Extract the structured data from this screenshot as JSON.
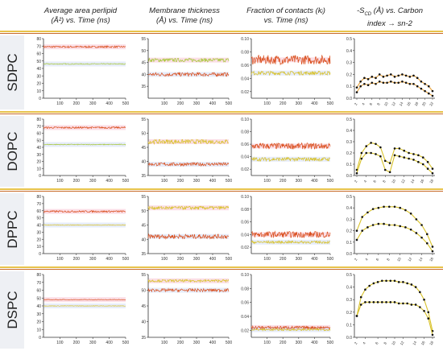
{
  "headers": {
    "col1": {
      "line1": "Average area perlipid",
      "line2": "(Å²) vs. Time (ns)"
    },
    "col2": {
      "line1": "Membrane thickness",
      "line2": "(Å) vs. Time (ns)"
    },
    "col3": {
      "line1": "Fraction of contacts (kᵢ)",
      "line2": "vs. Time (ns)"
    },
    "col4": {
      "line1": "-S",
      "sub": "CD",
      "line1b": " (Å) vs. Carbon",
      "line2": "index → sn-2"
    }
  },
  "rows": [
    "SDPC",
    "DOPC",
    "DPPC",
    "DSPC"
  ],
  "colors": {
    "red": "#d94d1a",
    "orange": "#e8a23a",
    "yellow": "#d8c22a",
    "green": "#a8c83a",
    "pink": "#f3a0b8",
    "blue": "#b8c8f0",
    "band": "#e8c34a",
    "bandDark": "#c86a28"
  },
  "chart_data": [
    {
      "type": "line",
      "row": "SDPC",
      "panel": "area",
      "xlim": [
        0,
        500
      ],
      "ylim": [
        0,
        80
      ],
      "xticks": [
        "100",
        "200",
        "300",
        "400",
        "500"
      ],
      "yticks": [
        "0",
        "10",
        "20",
        "30",
        "40",
        "50",
        "60",
        "70",
        "80"
      ],
      "series": [
        {
          "mean": 69,
          "noise": 1.2,
          "color": "red"
        },
        {
          "mean": 46,
          "noise": 0.6,
          "color": "green"
        }
      ]
    },
    {
      "type": "line",
      "row": "SDPC",
      "panel": "thickness",
      "xlim": [
        0,
        500
      ],
      "ylim": [
        30,
        55
      ],
      "xticks": [
        "100",
        "200",
        "300",
        "400",
        "500"
      ],
      "yticks": [
        "35",
        "40",
        "45",
        "50",
        "55"
      ],
      "series": [
        {
          "mean": 46,
          "noise": 0.8,
          "color": "green"
        },
        {
          "mean": 40,
          "noise": 0.8,
          "color": "red"
        }
      ]
    },
    {
      "type": "line",
      "row": "SDPC",
      "panel": "contacts",
      "xlim": [
        0,
        500
      ],
      "ylim": [
        0.01,
        0.1
      ],
      "xticks": [
        "100",
        "200",
        "300",
        "400",
        "500"
      ],
      "yticks": [
        "0.02",
        "0.04",
        "0.06",
        "0.08",
        "0.10"
      ],
      "series": [
        {
          "mean": 0.068,
          "noise": 0.007,
          "color": "red"
        },
        {
          "mean": 0.048,
          "noise": 0.003,
          "color": "yellow"
        }
      ]
    },
    {
      "type": "line",
      "row": "SDPC",
      "panel": "scd",
      "ylim": [
        0,
        0.5
      ],
      "yticks": [
        "0.0",
        "0.1",
        "0.2",
        "0.3",
        "0.4",
        "0.5"
      ],
      "xticks": [
        "2",
        "4",
        "6",
        "8",
        "10",
        "12",
        "14",
        "16",
        "18",
        "20",
        "22"
      ],
      "series": [
        {
          "values": [
            0.09,
            0.14,
            0.17,
            0.16,
            0.18,
            0.17,
            0.2,
            0.18,
            0.19,
            0.2,
            0.18,
            0.19,
            0.2,
            0.19,
            0.18,
            0.19,
            0.17,
            0.14,
            0.12,
            0.1,
            0.06
          ],
          "color": "orange"
        },
        {
          "values": [
            0.05,
            0.1,
            0.12,
            0.11,
            0.13,
            0.12,
            0.14,
            0.13,
            0.13,
            0.14,
            0.13,
            0.13,
            0.14,
            0.13,
            0.12,
            0.12,
            0.1,
            0.08,
            0.06,
            0.04,
            0.02
          ],
          "color": "orange"
        }
      ]
    },
    {
      "type": "line",
      "row": "DOPC",
      "panel": "area",
      "xlim": [
        0,
        500
      ],
      "ylim": [
        0,
        80
      ],
      "xticks": [
        "100",
        "200",
        "300",
        "400",
        "500"
      ],
      "yticks": [
        "0",
        "10",
        "20",
        "30",
        "40",
        "50",
        "60",
        "70",
        "80"
      ],
      "series": [
        {
          "mean": 68,
          "noise": 1.2,
          "color": "red"
        },
        {
          "mean": 44,
          "noise": 0.6,
          "color": "green"
        }
      ]
    },
    {
      "type": "line",
      "row": "DOPC",
      "panel": "thickness",
      "xlim": [
        0,
        500
      ],
      "ylim": [
        35,
        55
      ],
      "xticks": [
        "100",
        "200",
        "300",
        "400",
        "500"
      ],
      "yticks": [
        "35",
        "40",
        "45",
        "50",
        "55"
      ],
      "series": [
        {
          "mean": 47,
          "noise": 0.8,
          "color": "yellow"
        },
        {
          "mean": 39,
          "noise": 0.6,
          "color": "red"
        }
      ]
    },
    {
      "type": "line",
      "row": "DOPC",
      "panel": "contacts",
      "xlim": [
        0,
        500
      ],
      "ylim": [
        0.01,
        0.1
      ],
      "xticks": [
        "100",
        "200",
        "300",
        "400",
        "500"
      ],
      "yticks": [
        "0.02",
        "0.04",
        "0.06",
        "0.08",
        "0.10"
      ],
      "series": [
        {
          "mean": 0.057,
          "noise": 0.005,
          "color": "red"
        },
        {
          "mean": 0.036,
          "noise": 0.003,
          "color": "yellow"
        }
      ]
    },
    {
      "type": "line",
      "row": "DOPC",
      "panel": "scd",
      "ylim": [
        0,
        0.5
      ],
      "yticks": [
        "0.0",
        "0.1",
        "0.2",
        "0.3",
        "0.4",
        "0.5"
      ],
      "xticks": [
        "2",
        "4",
        "6",
        "8",
        "10",
        "12",
        "14",
        "16",
        "18"
      ],
      "series": [
        {
          "values": [
            0.05,
            0.2,
            0.26,
            0.29,
            0.28,
            0.25,
            0.13,
            0.11,
            0.24,
            0.24,
            0.22,
            0.2,
            0.19,
            0.18,
            0.16,
            0.12,
            0.06
          ],
          "color": "yellow"
        },
        {
          "values": [
            0.02,
            0.15,
            0.2,
            0.2,
            0.19,
            0.17,
            0.05,
            0.03,
            0.18,
            0.17,
            0.16,
            0.15,
            0.14,
            0.12,
            0.1,
            0.06,
            0.02
          ],
          "color": "yellow"
        }
      ]
    },
    {
      "type": "line",
      "row": "DPPC",
      "panel": "area",
      "xlim": [
        0,
        500
      ],
      "ylim": [
        0,
        80
      ],
      "xticks": [
        "100",
        "200",
        "300",
        "400",
        "500"
      ],
      "yticks": [
        "0",
        "10",
        "20",
        "30",
        "40",
        "50",
        "60",
        "70",
        "80"
      ],
      "series": [
        {
          "mean": 59,
          "noise": 1.2,
          "color": "red"
        },
        {
          "mean": 40,
          "noise": 0.5,
          "color": "yellow"
        }
      ]
    },
    {
      "type": "line",
      "row": "DPPC",
      "panel": "thickness",
      "xlim": [
        0,
        500
      ],
      "ylim": [
        35,
        55
      ],
      "xticks": [
        "100",
        "200",
        "300",
        "400",
        "500"
      ],
      "yticks": [
        "35",
        "40",
        "45",
        "50",
        "55"
      ],
      "series": [
        {
          "mean": 51,
          "noise": 0.6,
          "color": "yellow"
        },
        {
          "mean": 41,
          "noise": 0.8,
          "color": "red"
        }
      ]
    },
    {
      "type": "line",
      "row": "DPPC",
      "panel": "contacts",
      "xlim": [
        0,
        500
      ],
      "ylim": [
        0.01,
        0.1
      ],
      "xticks": [
        "100",
        "200",
        "300",
        "400",
        "500"
      ],
      "yticks": [
        "0.02",
        "0.04",
        "0.06",
        "0.08",
        "0.10"
      ],
      "series": [
        {
          "mean": 0.04,
          "noise": 0.005,
          "color": "red"
        },
        {
          "mean": 0.028,
          "noise": 0.002,
          "color": "yellow"
        }
      ]
    },
    {
      "type": "line",
      "row": "DPPC",
      "panel": "scd",
      "ylim": [
        0,
        0.5
      ],
      "yticks": [
        "0.0",
        "0.1",
        "0.2",
        "0.3",
        "0.4",
        "0.5"
      ],
      "xticks": [
        "2",
        "4",
        "6",
        "8",
        "10",
        "12",
        "14",
        "16"
      ],
      "series": [
        {
          "values": [
            0.2,
            0.32,
            0.36,
            0.39,
            0.4,
            0.41,
            0.41,
            0.41,
            0.4,
            0.38,
            0.35,
            0.3,
            0.25,
            0.17,
            0.06
          ],
          "color": "yellow"
        },
        {
          "values": [
            0.12,
            0.2,
            0.23,
            0.25,
            0.26,
            0.26,
            0.25,
            0.25,
            0.24,
            0.23,
            0.21,
            0.18,
            0.14,
            0.09,
            0.02
          ],
          "color": "yellow"
        }
      ]
    },
    {
      "type": "line",
      "row": "DSPC",
      "panel": "area",
      "xlim": [
        0,
        500
      ],
      "ylim": [
        0,
        80
      ],
      "xticks": [
        "100",
        "200",
        "300",
        "400",
        "500"
      ],
      "yticks": [
        "0",
        "10",
        "20",
        "30",
        "40",
        "50",
        "60",
        "70",
        "80"
      ],
      "series": [
        {
          "mean": 48,
          "noise": 0.3,
          "color": "red"
        },
        {
          "mean": 40,
          "noise": 0.3,
          "color": "yellow"
        }
      ]
    },
    {
      "type": "line",
      "row": "DSPC",
      "panel": "thickness",
      "xlim": [
        0,
        500
      ],
      "ylim": [
        35,
        55
      ],
      "xticks": [
        "100",
        "200",
        "300",
        "400",
        "500"
      ],
      "yticks": [
        "35",
        "40",
        "45",
        "50",
        "55"
      ],
      "series": [
        {
          "mean": 53,
          "noise": 0.4,
          "color": "yellow"
        },
        {
          "mean": 50,
          "noise": 0.5,
          "color": "red"
        }
      ]
    },
    {
      "type": "line",
      "row": "DSPC",
      "panel": "contacts",
      "xlim": [
        0,
        500
      ],
      "ylim": [
        0.01,
        0.1
      ],
      "xticks": [
        "100",
        "200",
        "300",
        "400",
        "500"
      ],
      "yticks": [
        "0.02",
        "0.04",
        "0.06",
        "0.08",
        "0.10"
      ],
      "series": [
        {
          "mean": 0.024,
          "noise": 0.002,
          "color": "red"
        },
        {
          "mean": 0.021,
          "noise": 0.0015,
          "color": "yellow"
        }
      ]
    },
    {
      "type": "line",
      "row": "DSPC",
      "panel": "scd",
      "ylim": [
        0,
        0.5
      ],
      "yticks": [
        "0.0",
        "0.1",
        "0.2",
        "0.3",
        "0.4",
        "0.5"
      ],
      "xticks": [
        "2",
        "4",
        "6",
        "8",
        "10",
        "12",
        "14",
        "16",
        "18"
      ],
      "series": [
        {
          "values": [
            0.17,
            0.32,
            0.38,
            0.41,
            0.43,
            0.44,
            0.45,
            0.45,
            0.45,
            0.45,
            0.44,
            0.44,
            0.43,
            0.42,
            0.4,
            0.36,
            0.3,
            0.2,
            0.05
          ],
          "color": "yellow"
        },
        {
          "values": [
            0.17,
            0.26,
            0.28,
            0.28,
            0.28,
            0.28,
            0.28,
            0.28,
            0.28,
            0.28,
            0.27,
            0.27,
            0.27,
            0.26,
            0.26,
            0.24,
            0.21,
            0.15,
            0.02
          ],
          "color": "yellow"
        }
      ]
    }
  ]
}
